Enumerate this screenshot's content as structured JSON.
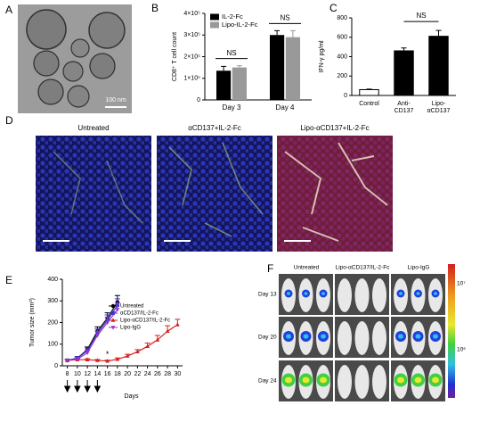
{
  "panel_labels": [
    "A",
    "B",
    "C",
    "D",
    "E",
    "F"
  ],
  "panel_a": {
    "scale_bar": "100 nm"
  },
  "panel_d": {
    "titles": [
      "Untreated",
      "αCD137+IL-2-Fc",
      "Lipo-αCD137+IL-2-Fc"
    ]
  },
  "panel_f": {
    "columns": [
      "Untreated",
      "Lipo-αCD137/IL-2-Fc",
      "Lipo-IgG"
    ],
    "rows": [
      "Day 13",
      "Day 20",
      "Day 24"
    ],
    "colorbar_labels": [
      "10⁷",
      "10⁶"
    ]
  },
  "chart_data": [
    {
      "type": "bar",
      "y_label": "CD8⁺ T cell count",
      "categories": [
        "Day 3",
        "Day 4"
      ],
      "series": [
        {
          "name": "IL-2-Fc",
          "color": "#000000",
          "values": [
            135000,
            300000
          ],
          "errors": [
            20000,
            20000
          ]
        },
        {
          "name": "Lipo-IL-2-Fc",
          "color": "#999999",
          "values": [
            150000,
            290000
          ],
          "errors": [
            8000,
            30000
          ]
        }
      ],
      "ylim": [
        0,
        400000
      ],
      "yticks": [
        0,
        {
          "value": 100000,
          "label": "1×10⁵"
        },
        {
          "value": 200000,
          "label": "2×10⁵"
        },
        {
          "value": 300000,
          "label": "3×10⁵"
        },
        {
          "value": 400000,
          "label": "4×10⁵"
        }
      ],
      "annotations": [
        "NS",
        "NS"
      ]
    },
    {
      "type": "bar",
      "y_label": "IFN-γ pg/ml",
      "categories": [
        [
          "Control"
        ],
        [
          "Anti-",
          "CD137"
        ],
        [
          "Lipo-",
          "αCD137"
        ]
      ],
      "values": [
        60,
        460,
        610
      ],
      "errors": [
        5,
        30,
        60
      ],
      "colors": [
        "#ffffff",
        "#000000",
        "#000000"
      ],
      "ylim": [
        0,
        800
      ],
      "yticks": [
        0,
        200,
        400,
        600,
        800
      ],
      "annotations": [
        "NS"
      ]
    },
    {
      "type": "line",
      "y_label": "Tumor size (mm³)",
      "x_label": "Days",
      "xlim": [
        7,
        31
      ],
      "xticks": [
        8,
        10,
        12,
        14,
        16,
        18,
        20,
        22,
        24,
        26,
        28,
        30
      ],
      "ylim": [
        0,
        400
      ],
      "yticks": [
        0,
        100,
        200,
        300,
        400
      ],
      "series": [
        {
          "name": "Untreated",
          "color": "#000000",
          "marker": "circle",
          "x": [
            8,
            10,
            12,
            14,
            16,
            18
          ],
          "values": [
            25,
            35,
            75,
            160,
            220,
            295
          ],
          "errors": [
            5,
            8,
            12,
            20,
            25,
            30
          ]
        },
        {
          "name": "αCD137/IL-2-Fc",
          "color": "#3333cc",
          "marker": "square",
          "x": [
            8,
            10,
            12,
            14,
            16,
            18
          ],
          "values": [
            25,
            35,
            70,
            150,
            210,
            280
          ],
          "errors": [
            5,
            8,
            12,
            20,
            25,
            30
          ]
        },
        {
          "name": "Lipo-αCD137/IL-2-Fc",
          "color": "#d62020",
          "marker": "triangle",
          "x": [
            8,
            10,
            12,
            14,
            16,
            18,
            20,
            22,
            24,
            26,
            28,
            30
          ],
          "values": [
            25,
            28,
            28,
            25,
            22,
            30,
            45,
            65,
            90,
            120,
            160,
            190
          ],
          "errors": [
            4,
            5,
            5,
            4,
            4,
            6,
            8,
            10,
            15,
            20,
            25,
            25
          ]
        },
        {
          "name": "Lipo-IgG",
          "color": "#9933cc",
          "marker": "triangle-down",
          "x": [
            8,
            10,
            12,
            14,
            16,
            18
          ],
          "values": [
            25,
            30,
            60,
            140,
            200,
            260
          ],
          "errors": [
            5,
            8,
            12,
            20,
            25,
            30
          ]
        }
      ],
      "treatment_days": [
        8,
        10,
        12,
        14
      ],
      "annotations": [
        "*"
      ]
    }
  ]
}
